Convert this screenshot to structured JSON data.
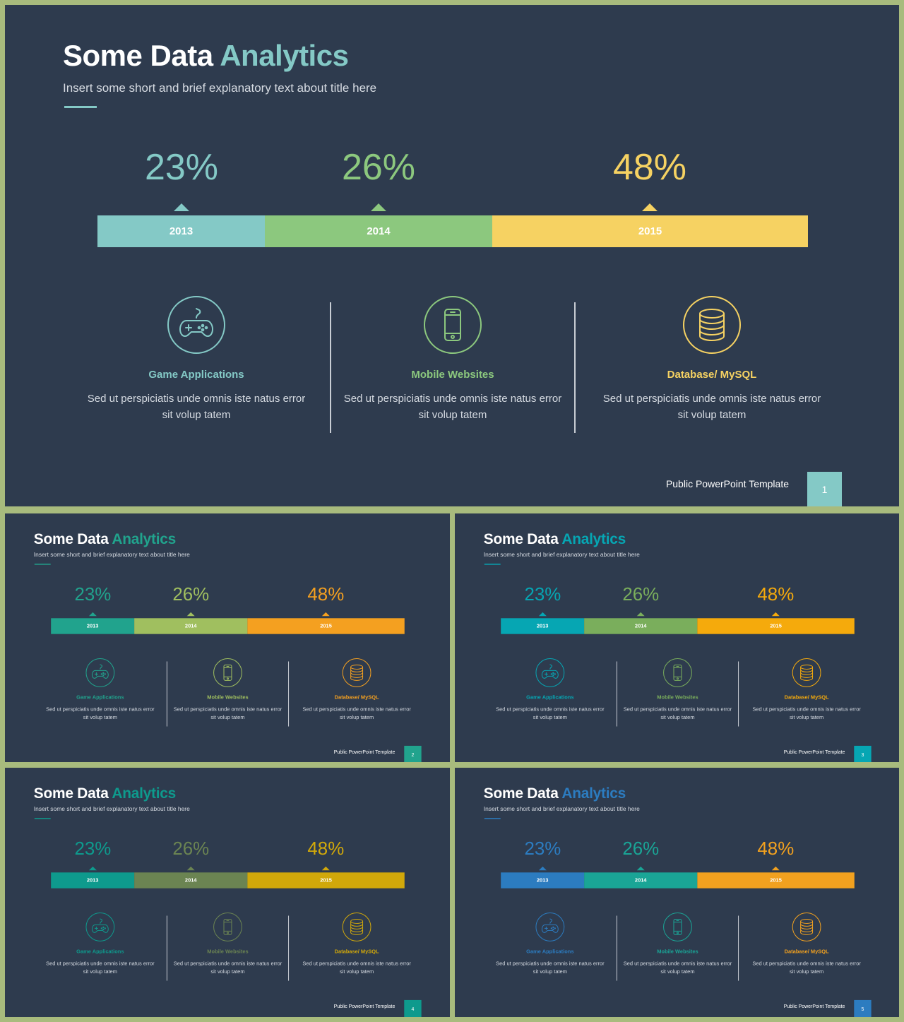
{
  "title_lead": "Some Data",
  "title_accent": "Analytics",
  "subtitle": "Insert some short and brief explanatory text about title here",
  "footer_text": "Public PowerPoint Template",
  "years": [
    "2013",
    "2014",
    "2015"
  ],
  "percents": [
    "23%",
    "26%",
    "48%"
  ],
  "columns": [
    {
      "icon": "gamepad-icon",
      "title": "Game Applications",
      "desc": "Sed ut perspiciatis unde omnis iste natus error sit volup tatem"
    },
    {
      "icon": "smartphone-icon",
      "title": "Mobile Websites",
      "desc": "Sed ut perspiciatis unde omnis iste natus error sit volup tatem"
    },
    {
      "icon": "database-icon",
      "title": "Database/ MySQL",
      "desc": "Sed ut perspiciatis unde omnis iste natus error sit volup tatem"
    }
  ],
  "slides": [
    {
      "page": "1",
      "colors": [
        "#84c9c6",
        "#8cc87e",
        "#f6d262"
      ],
      "accent": "#84c9c6"
    },
    {
      "page": "2",
      "colors": [
        "#21a38d",
        "#a0bf5f",
        "#f4a020"
      ],
      "accent": "#21a38d"
    },
    {
      "page": "3",
      "colors": [
        "#06a6b3",
        "#7aae5c",
        "#f5aa0c"
      ],
      "accent": "#06a6b3"
    },
    {
      "page": "4",
      "colors": [
        "#0e9a8d",
        "#6b8452",
        "#d1a80a"
      ],
      "accent": "#0e9a8d"
    },
    {
      "page": "5",
      "colors": [
        "#2c7cc0",
        "#1aa596",
        "#f2a11f"
      ],
      "accent": "#2c7cc0"
    }
  ]
}
